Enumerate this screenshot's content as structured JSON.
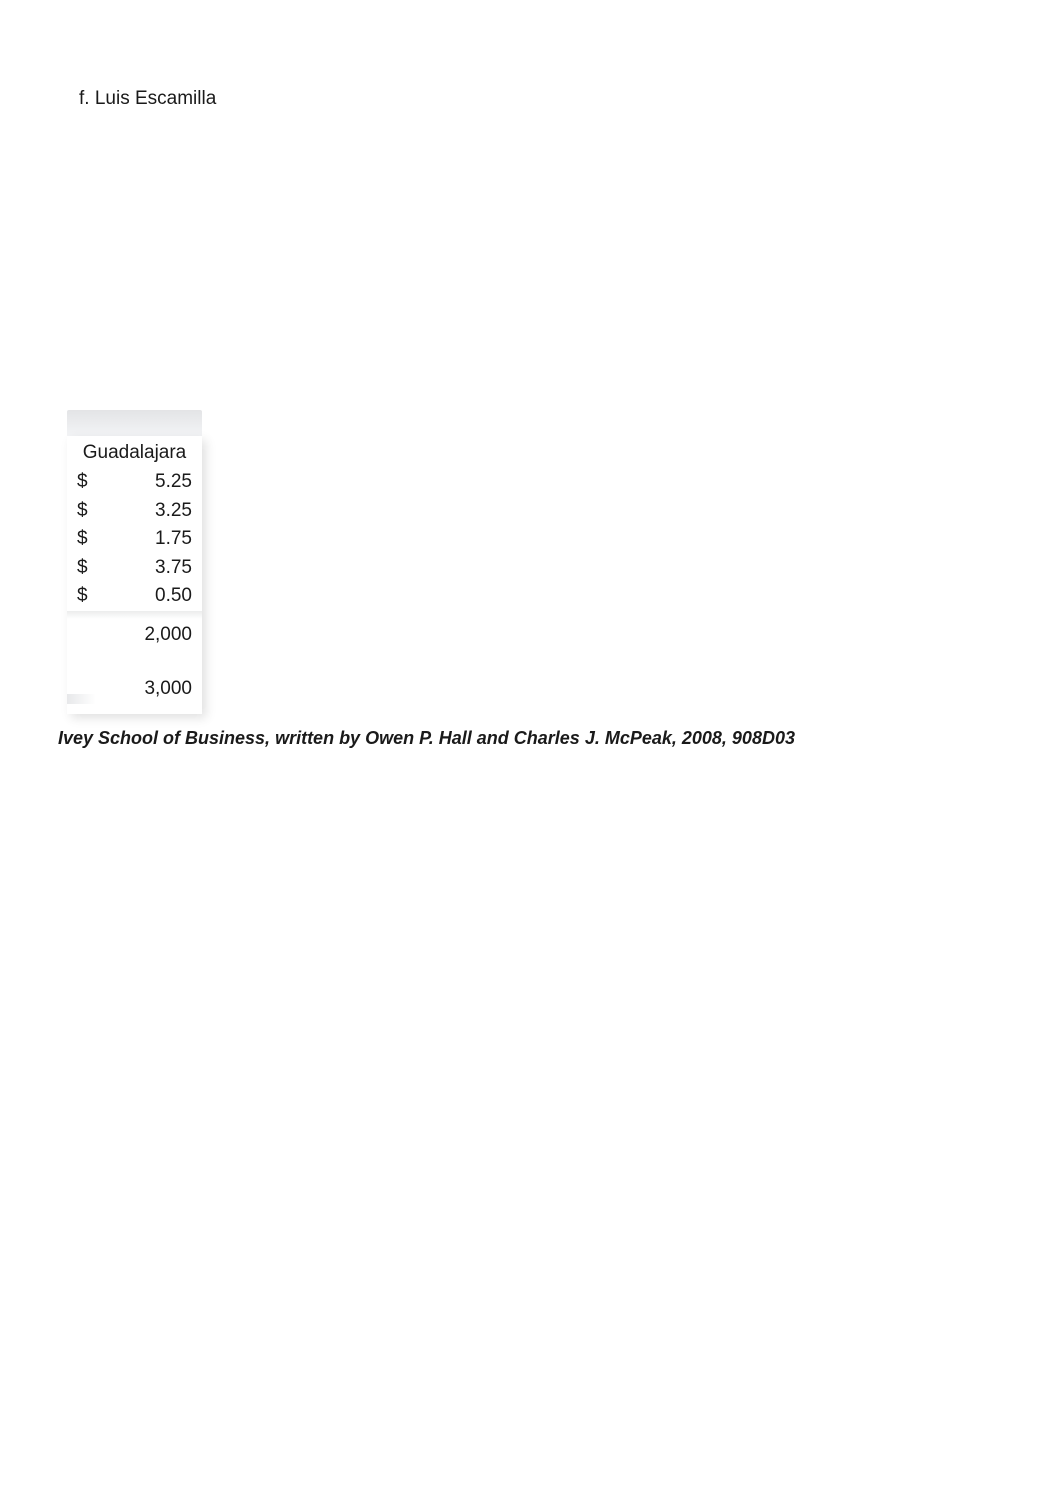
{
  "header": "f. Luis Escamilla",
  "table": {
    "column_header": "Guadalajara",
    "currency_rows": [
      {
        "symbol": "$",
        "value": "5.25"
      },
      {
        "symbol": "$",
        "value": "3.25"
      },
      {
        "symbol": "$",
        "value": "1.75"
      },
      {
        "symbol": "$",
        "value": "3.75"
      },
      {
        "symbol": "$",
        "value": "0.50"
      }
    ],
    "plain_rows": [
      {
        "value": "2,000"
      },
      {
        "value": "3,000"
      }
    ]
  },
  "citation": "Ivey School of Business, written by Owen P. Hall and Charles J. McPeak, 2008, 908D03",
  "colors": {
    "background": "#ffffff",
    "text": "#1a1a1a",
    "shadow": "#e3e4e6"
  },
  "fonts": {
    "body_size_pt": 14,
    "citation_size_pt": 13,
    "citation_weight": "600"
  }
}
